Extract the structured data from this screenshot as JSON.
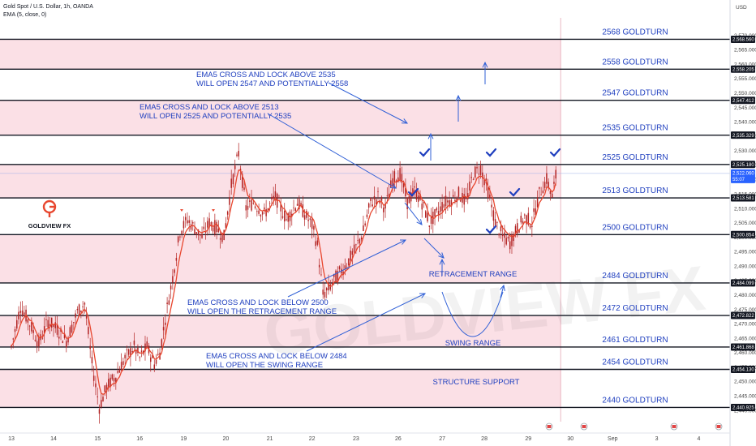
{
  "header": {
    "symbol": "Gold Spot / U.S. Dollar, 1h, OANDA",
    "indicator": "EMA (5, close, 0)"
  },
  "axis": {
    "currency": "USD"
  },
  "logo": {
    "text": "GOLDVIEW FX"
  },
  "watermark": "GOLDVIEW FX",
  "colors": {
    "zone": "#fbe0e6",
    "line": "#131722",
    "text": "#1f3fbf",
    "candle": "#b22222",
    "ema": "#e8462e"
  },
  "chart_data": {
    "type": "candlestick",
    "ylim": [
      2436,
      2576
    ],
    "x_ticks": [
      {
        "label": "13",
        "i": 0
      },
      {
        "label": "14",
        "i": 23
      },
      {
        "label": "15",
        "i": 47
      },
      {
        "label": "16",
        "i": 70
      },
      {
        "label": "19",
        "i": 94
      },
      {
        "label": "20",
        "i": 117
      },
      {
        "label": "21",
        "i": 141
      },
      {
        "label": "22",
        "i": 164
      },
      {
        "label": "23",
        "i": 188
      },
      {
        "label": "26",
        "i": 211
      },
      {
        "label": "27",
        "i": 235
      },
      {
        "label": "28",
        "i": 258
      },
      {
        "label": "29",
        "i": 282
      },
      {
        "label": "30",
        "i": 305
      },
      {
        "label": "Sep",
        "i": 328
      },
      {
        "label": "3",
        "i": 352
      },
      {
        "label": "4",
        "i": 375
      }
    ],
    "y_ticks": [
      2440,
      2445,
      2450,
      2455,
      2460,
      2465,
      2470,
      2475,
      2480,
      2485,
      2490,
      2495,
      2500,
      2505,
      2510,
      2515,
      2520,
      2525,
      2530,
      2535,
      2540,
      2545,
      2550,
      2555,
      2560,
      2565,
      2570
    ],
    "price_badges": [
      {
        "value": 2568.56,
        "label": "2,568.560"
      },
      {
        "value": 2558.205,
        "label": "2,558.205"
      },
      {
        "value": 2547.412,
        "label": "2,547.412"
      },
      {
        "value": 2535.329,
        "label": "2,535.329"
      },
      {
        "value": 2525.18,
        "label": "2,525.180"
      },
      {
        "value": 2513.581,
        "label": "2,513.581"
      },
      {
        "value": 2500.854,
        "label": "2,500.854"
      },
      {
        "value": 2484.099,
        "label": "2,484.099"
      },
      {
        "value": 2472.822,
        "label": "2,472.822"
      },
      {
        "value": 2461.868,
        "label": "2,461.868"
      },
      {
        "value": 2454.13,
        "label": "2,454.130"
      },
      {
        "value": 2440.925,
        "label": "2,440.925"
      }
    ],
    "current_price": {
      "value": 2522.06,
      "label": "2,522.060",
      "countdown": "55:07"
    },
    "levels": [
      {
        "value": 2568.56,
        "label": "2568 GOLDTURN"
      },
      {
        "value": 2558.205,
        "label": "2558 GOLDTURN"
      },
      {
        "value": 2547.412,
        "label": "2547 GOLDTURN"
      },
      {
        "value": 2535.329,
        "label": "2535 GOLDTURN"
      },
      {
        "value": 2525.18,
        "label": "2525 GOLDTURN"
      },
      {
        "value": 2513.581,
        "label": "2513 GOLDTURN"
      },
      {
        "value": 2500.854,
        "label": "2500 GOLDTURN"
      },
      {
        "value": 2484.099,
        "label": "2484 GOLDTURN"
      },
      {
        "value": 2472.822,
        "label": "2472 GOLDTURN"
      },
      {
        "value": 2461.868,
        "label": "2461 GOLDTURN"
      },
      {
        "value": 2454.13,
        "label": "2454 GOLDTURN"
      },
      {
        "value": 2440.925,
        "label": "2440 GOLDTURN"
      }
    ],
    "zones": [
      [
        2558.205,
        2568.56
      ],
      [
        2535.329,
        2547.412
      ],
      [
        2513.581,
        2525.18
      ],
      [
        2484.099,
        2500.854
      ],
      [
        2461.868,
        2472.822
      ],
      [
        2440.925,
        2454.13
      ]
    ],
    "annotations": [
      {
        "line1": "EMA5 CROSS AND LOCK ABOVE 2535",
        "line2": "WILL OPEN 2547 AND POTENTIALLY 2558"
      },
      {
        "line1": "EMA5 CROSS AND LOCK ABOVE 2513",
        "line2": "WILL OPEN 2525 AND POTENTIALLY 2535"
      },
      {
        "line1": "EMA5 CROSS AND LOCK BELOW 2500",
        "line2": "WILL OPEN THE RETRACEMENT RANGE"
      },
      {
        "line1": "EMA5 CROSS AND LOCK BELOW 2484",
        "line2": "WILL OPEN THE SWING RANGE"
      }
    ],
    "range_labels": {
      "retracement": "RETRACEMENT RANGE",
      "swing": "SWING RANGE",
      "structure": "STRUCTURE SUPPORT"
    },
    "price_path": [
      [
        0,
        2462
      ],
      [
        5,
        2476
      ],
      [
        10,
        2470
      ],
      [
        15,
        2463
      ],
      [
        20,
        2471
      ],
      [
        25,
        2468
      ],
      [
        30,
        2464
      ],
      [
        36,
        2474
      ],
      [
        40,
        2477
      ],
      [
        44,
        2456
      ],
      [
        48,
        2441
      ],
      [
        52,
        2448
      ],
      [
        57,
        2452
      ],
      [
        62,
        2458
      ],
      [
        67,
        2462
      ],
      [
        70,
        2458
      ],
      [
        74,
        2462
      ],
      [
        78,
        2456
      ],
      [
        81,
        2460
      ],
      [
        84,
        2472
      ],
      [
        88,
        2486
      ],
      [
        92,
        2502
      ],
      [
        96,
        2506
      ],
      [
        100,
        2503
      ],
      [
        104,
        2500
      ],
      [
        108,
        2505
      ],
      [
        112,
        2503
      ],
      [
        116,
        2500
      ],
      [
        120,
        2518
      ],
      [
        124,
        2529
      ],
      [
        128,
        2510
      ],
      [
        132,
        2512
      ],
      [
        138,
        2508
      ],
      [
        144,
        2514
      ],
      [
        150,
        2506
      ],
      [
        156,
        2512
      ],
      [
        160,
        2508
      ],
      [
        164,
        2504
      ],
      [
        167,
        2497
      ],
      [
        170,
        2480
      ],
      [
        173,
        2482
      ],
      [
        177,
        2486
      ],
      [
        182,
        2490
      ],
      [
        187,
        2495
      ],
      [
        192,
        2502
      ],
      [
        196,
        2512
      ],
      [
        200,
        2514
      ],
      [
        204,
        2510
      ],
      [
        208,
        2520
      ],
      [
        212,
        2522
      ],
      [
        216,
        2512
      ],
      [
        220,
        2516
      ],
      [
        224,
        2512
      ],
      [
        228,
        2505
      ],
      [
        232,
        2508
      ],
      [
        236,
        2512
      ],
      [
        240,
        2513
      ],
      [
        244,
        2515
      ],
      [
        248,
        2512
      ],
      [
        252,
        2522
      ],
      [
        256,
        2524
      ],
      [
        260,
        2516
      ],
      [
        264,
        2505
      ],
      [
        268,
        2500
      ],
      [
        272,
        2498
      ],
      [
        276,
        2503
      ],
      [
        280,
        2507
      ],
      [
        284,
        2505
      ],
      [
        288,
        2515
      ],
      [
        292,
        2520
      ],
      [
        295,
        2514
      ],
      [
        297,
        2521
      ]
    ]
  }
}
